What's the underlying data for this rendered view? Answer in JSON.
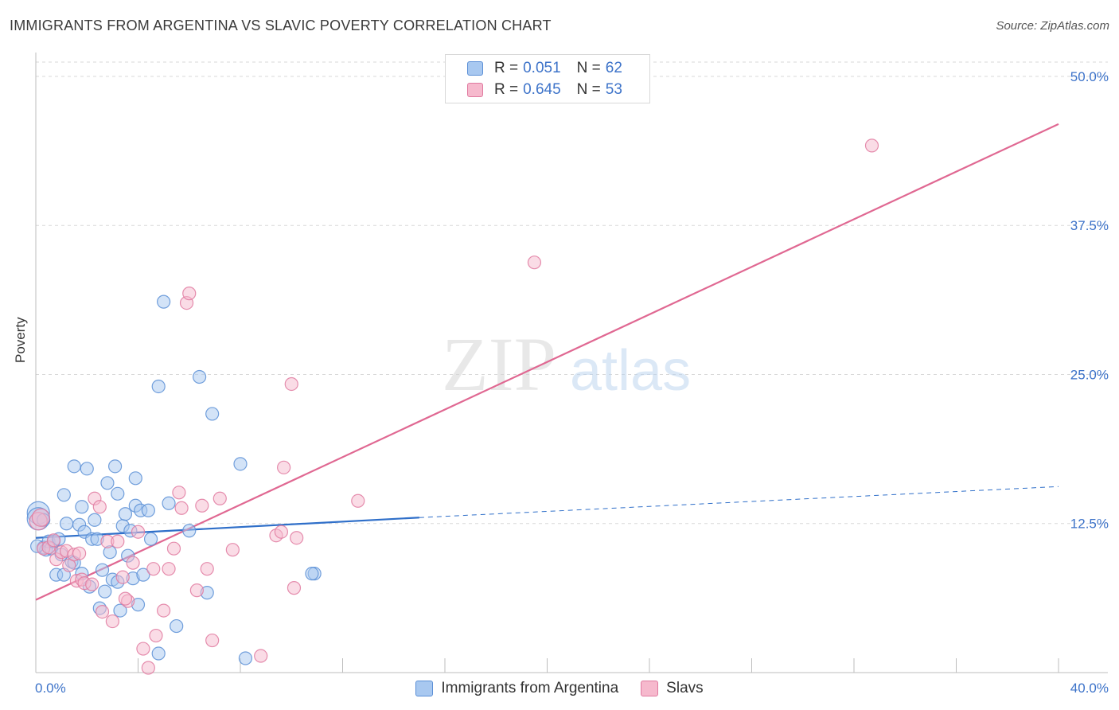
{
  "title": "IMMIGRANTS FROM ARGENTINA VS SLAVIC POVERTY CORRELATION CHART",
  "source": "Source: ZipAtlas.com",
  "watermark": {
    "zip": "ZIP",
    "atlas": "atlas"
  },
  "legend_top": {
    "rows": [
      {
        "r_label": "R =",
        "r_value": "0.051",
        "n_label": "N =",
        "n_value": "62"
      },
      {
        "r_label": "R =",
        "r_value": "0.645",
        "n_label": "N =",
        "n_value": "53"
      }
    ]
  },
  "legend_bottom": [
    "Immigrants from Argentina",
    "Slavs"
  ],
  "colors": {
    "blue_fill": "#a8c8f0",
    "blue_stroke": "#5b8fd6",
    "blue_line": "#2f6fc9",
    "pink_fill": "#f6b9cd",
    "pink_stroke": "#e07aa0",
    "pink_line": "#e06892",
    "tick_label": "#3d73c9",
    "grid": "#d9d9d9"
  },
  "chart_data": {
    "type": "scatter",
    "title": "IMMIGRANTS FROM ARGENTINA VS SLAVIC POVERTY CORRELATION CHART",
    "xlabel": "",
    "ylabel": "Poverty",
    "xlim": [
      0,
      40
    ],
    "ylim": [
      0,
      50
    ],
    "x_tick_labels": [
      {
        "value": 0,
        "label": "0.0%"
      },
      {
        "value": 40,
        "label": "40.0%"
      }
    ],
    "y_tick_labels": [
      {
        "value": 12.5,
        "label": "12.5%"
      },
      {
        "value": 25,
        "label": "25.0%"
      },
      {
        "value": 37.5,
        "label": "37.5%"
      },
      {
        "value": 50,
        "label": "50.0%"
      }
    ],
    "series": [
      {
        "name": "Immigrants from Argentina",
        "color": "blue",
        "R": 0.051,
        "N": 62,
        "points": [
          [
            0.1,
            13.4
          ],
          [
            0.1,
            12.9
          ],
          [
            0.3,
            10.5
          ],
          [
            0.4,
            10.3
          ],
          [
            0.5,
            11.0
          ],
          [
            0.6,
            10.4
          ],
          [
            0.7,
            11.0
          ],
          [
            0.8,
            8.2
          ],
          [
            0.9,
            11.2
          ],
          [
            1.0,
            9.9
          ],
          [
            1.1,
            8.2
          ],
          [
            1.1,
            14.9
          ],
          [
            1.2,
            12.5
          ],
          [
            1.4,
            9.3
          ],
          [
            1.5,
            9.2
          ],
          [
            1.5,
            17.3
          ],
          [
            1.7,
            12.4
          ],
          [
            1.8,
            13.9
          ],
          [
            1.8,
            8.3
          ],
          [
            1.9,
            11.8
          ],
          [
            2.0,
            17.1
          ],
          [
            2.1,
            7.2
          ],
          [
            2.2,
            11.2
          ],
          [
            2.3,
            12.8
          ],
          [
            2.4,
            11.2
          ],
          [
            2.5,
            5.4
          ],
          [
            2.6,
            8.6
          ],
          [
            2.7,
            6.8
          ],
          [
            2.8,
            15.9
          ],
          [
            2.9,
            10.1
          ],
          [
            3.0,
            7.8
          ],
          [
            3.1,
            17.3
          ],
          [
            3.2,
            7.6
          ],
          [
            3.2,
            15.0
          ],
          [
            3.3,
            5.2
          ],
          [
            3.4,
            12.3
          ],
          [
            3.5,
            13.3
          ],
          [
            3.6,
            9.8
          ],
          [
            3.7,
            11.9
          ],
          [
            3.8,
            7.9
          ],
          [
            3.9,
            14.0
          ],
          [
            3.9,
            16.3
          ],
          [
            4.0,
            5.7
          ],
          [
            4.1,
            13.6
          ],
          [
            4.2,
            8.2
          ],
          [
            4.4,
            13.6
          ],
          [
            4.5,
            11.2
          ],
          [
            4.8,
            24.0
          ],
          [
            4.8,
            1.6
          ],
          [
            5.0,
            31.1
          ],
          [
            5.2,
            14.2
          ],
          [
            5.5,
            3.9
          ],
          [
            6.0,
            11.9
          ],
          [
            6.4,
            24.8
          ],
          [
            6.7,
            6.7
          ],
          [
            6.9,
            21.7
          ],
          [
            8.0,
            17.5
          ],
          [
            8.2,
            1.2
          ],
          [
            10.9,
            8.3
          ],
          [
            10.8,
            8.3
          ],
          [
            0.05,
            10.6
          ],
          [
            0.3,
            12.8
          ]
        ],
        "trend": {
          "x0": 0,
          "y0": 11.3,
          "x1": 15,
          "y1": 13.0,
          "dashed_to_x": 40,
          "dashed_to_y": 15.6
        }
      },
      {
        "name": "Slavs",
        "color": "pink",
        "R": 0.645,
        "N": 53,
        "points": [
          [
            0.1,
            12.7
          ],
          [
            0.2,
            13.0
          ],
          [
            0.3,
            10.4
          ],
          [
            0.5,
            10.5
          ],
          [
            0.7,
            11.1
          ],
          [
            0.8,
            9.5
          ],
          [
            1.0,
            10.1
          ],
          [
            1.2,
            10.2
          ],
          [
            1.3,
            9.0
          ],
          [
            1.5,
            9.9
          ],
          [
            1.6,
            7.7
          ],
          [
            1.7,
            10.0
          ],
          [
            1.8,
            7.8
          ],
          [
            1.9,
            7.5
          ],
          [
            2.2,
            7.4
          ],
          [
            2.3,
            14.6
          ],
          [
            2.5,
            13.9
          ],
          [
            2.6,
            5.1
          ],
          [
            2.8,
            11.0
          ],
          [
            3.0,
            4.3
          ],
          [
            3.2,
            11.0
          ],
          [
            3.4,
            8.0
          ],
          [
            3.6,
            6.0
          ],
          [
            3.8,
            9.2
          ],
          [
            4.0,
            11.8
          ],
          [
            4.2,
            2.0
          ],
          [
            4.4,
            0.4
          ],
          [
            4.6,
            8.7
          ],
          [
            4.7,
            3.1
          ],
          [
            5.0,
            5.2
          ],
          [
            5.2,
            8.7
          ],
          [
            5.4,
            10.4
          ],
          [
            5.6,
            15.1
          ],
          [
            5.7,
            13.8
          ],
          [
            5.9,
            31.0
          ],
          [
            6.0,
            31.8
          ],
          [
            6.3,
            6.9
          ],
          [
            6.5,
            14.0
          ],
          [
            6.7,
            8.7
          ],
          [
            6.9,
            2.7
          ],
          [
            7.2,
            14.6
          ],
          [
            7.7,
            10.3
          ],
          [
            8.8,
            1.4
          ],
          [
            9.4,
            11.5
          ],
          [
            9.6,
            11.8
          ],
          [
            9.7,
            17.2
          ],
          [
            10.0,
            24.2
          ],
          [
            10.1,
            7.1
          ],
          [
            10.2,
            11.3
          ],
          [
            12.6,
            14.4
          ],
          [
            19.5,
            34.4
          ],
          [
            32.7,
            44.2
          ],
          [
            3.5,
            6.2
          ]
        ],
        "trend": {
          "x0": 0,
          "y0": 6.1,
          "x1": 40,
          "y1": 46.0
        }
      }
    ]
  }
}
